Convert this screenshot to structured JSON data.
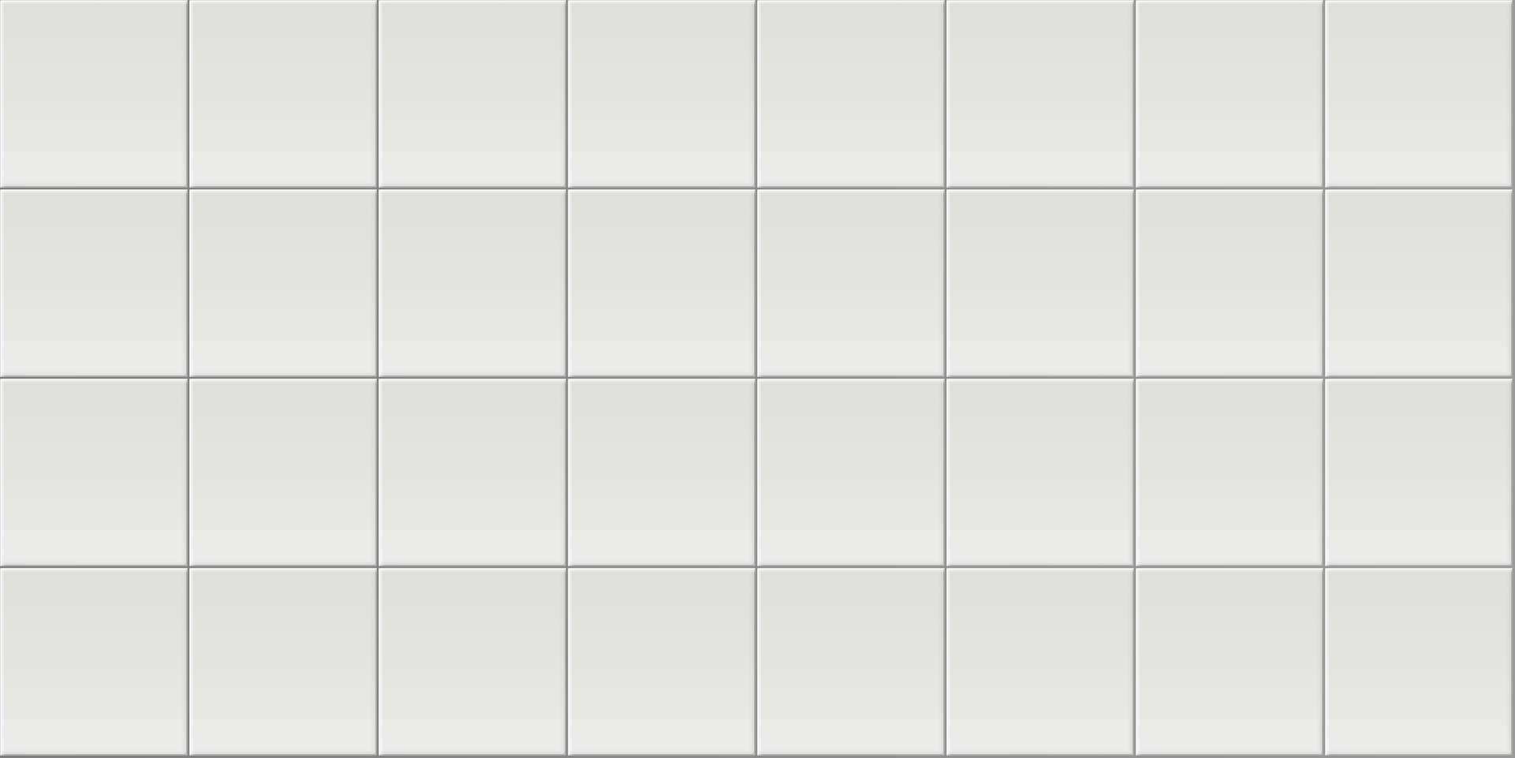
{
  "wall": {
    "grid": {
      "columns": 8,
      "rows": 4
    },
    "colors": {
      "tile_top": "#dfdfd9",
      "tile_bottom": "#ecece8",
      "grout": "#8f8f8d",
      "highlight": "#ffffff"
    }
  }
}
